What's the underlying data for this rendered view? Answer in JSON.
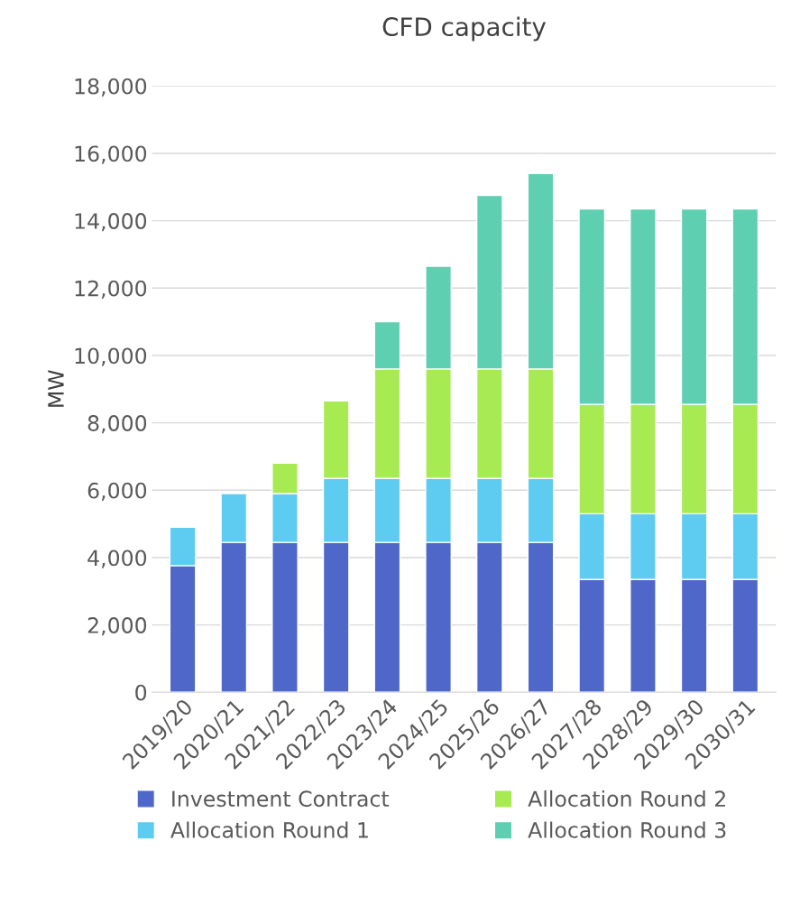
{
  "chart_data": {
    "type": "bar",
    "title": "CFD capacity",
    "ylabel": "MW",
    "stacked": true,
    "categories": [
      "2019/20",
      "2020/21",
      "2021/22",
      "2022/23",
      "2023/24",
      "2024/25",
      "2025/26",
      "2026/27",
      "2027/28",
      "2028/29",
      "2029/30",
      "2030/31"
    ],
    "series": [
      {
        "name": "Investment Contract",
        "color": "#4f67c8",
        "values": [
          3760,
          4450,
          4450,
          4450,
          4450,
          4450,
          4450,
          4450,
          3350,
          3350,
          3350,
          3350
        ]
      },
      {
        "name": "Allocation Round 1",
        "color": "#5ecbf0",
        "values": [
          1140,
          1450,
          1450,
          1900,
          1900,
          1900,
          1900,
          1900,
          1950,
          1950,
          1950,
          1950
        ]
      },
      {
        "name": "Allocation Round 2",
        "color": "#a8ea52",
        "values": [
          null,
          null,
          900,
          2300,
          3250,
          3250,
          3250,
          3250,
          3250,
          3250,
          3250,
          3250
        ]
      },
      {
        "name": "Allocation Round 3",
        "color": "#5ecfb1",
        "values": [
          null,
          null,
          null,
          null,
          1400,
          3050,
          5150,
          5800,
          5800,
          5800,
          5800,
          5800
        ]
      }
    ],
    "ylim": [
      0,
      18000
    ],
    "yticks": [
      {
        "value": 0,
        "label": "0"
      },
      {
        "value": 2000,
        "label": "2,000"
      },
      {
        "value": 4000,
        "label": "4,000"
      },
      {
        "value": 6000,
        "label": "6,000"
      },
      {
        "value": 8000,
        "label": "8,000"
      },
      {
        "value": 10000,
        "label": "10,000"
      },
      {
        "value": 12000,
        "label": "12,000"
      },
      {
        "value": 14000,
        "label": "14,000"
      },
      {
        "value": 16000,
        "label": "16,000"
      },
      {
        "value": 18000,
        "label": "18,000"
      }
    ],
    "grid": "y",
    "legend": "bottom"
  }
}
